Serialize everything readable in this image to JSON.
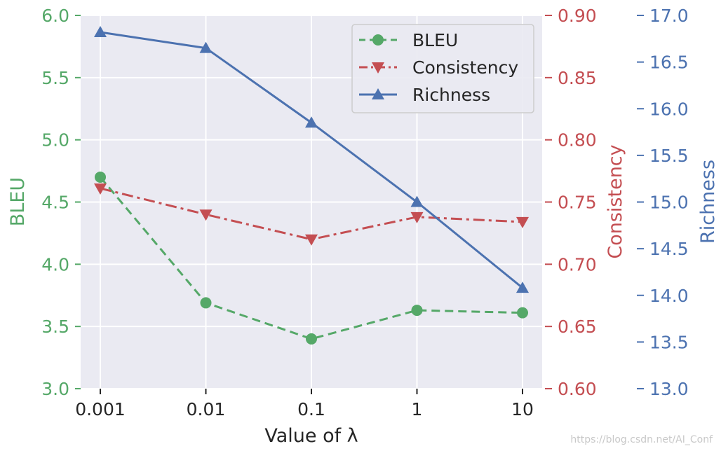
{
  "chart_data": {
    "type": "line",
    "xlabel": "Value of  λ",
    "categories": [
      "0.001",
      "0.01",
      "0.1",
      "1",
      "10"
    ],
    "axes": {
      "left": {
        "label": "BLEU",
        "ylim": [
          3.0,
          6.0
        ],
        "ticks": [
          "3.0",
          "3.5",
          "4.0",
          "4.5",
          "5.0",
          "5.5",
          "6.0"
        ],
        "color": "#55a868"
      },
      "right1": {
        "label": "Consistency",
        "ylim": [
          0.6,
          0.9
        ],
        "ticks": [
          "0.60",
          "0.65",
          "0.70",
          "0.75",
          "0.80",
          "0.85",
          "0.90"
        ],
        "color": "#c44e52"
      },
      "right2": {
        "label": "Richness",
        "ylim": [
          13.0,
          17.0
        ],
        "ticks": [
          "13.0",
          "13.5",
          "14.0",
          "14.5",
          "15.0",
          "15.5",
          "16.0",
          "16.5",
          "17.0"
        ],
        "color": "#4c72b0"
      }
    },
    "series": [
      {
        "name": "BLEU",
        "axis": "left",
        "color": "#55a868",
        "marker": "circle",
        "linestyle": "dashed",
        "values": [
          4.7,
          3.69,
          3.4,
          3.63,
          3.61
        ]
      },
      {
        "name": "Consistency",
        "axis": "right1",
        "color": "#c44e52",
        "marker": "triangle-down",
        "linestyle": "dashdot",
        "values": [
          0.761,
          0.74,
          0.72,
          0.738,
          0.734
        ]
      },
      {
        "name": "Richness",
        "axis": "right2",
        "color": "#4c72b0",
        "marker": "triangle-up",
        "linestyle": "solid",
        "values": [
          16.82,
          16.65,
          15.85,
          15.0,
          14.08
        ]
      }
    ],
    "legend": "top-right",
    "grid": true,
    "background": "#eaeaf2"
  },
  "watermark": "https://blog.csdn.net/AI_Conf"
}
